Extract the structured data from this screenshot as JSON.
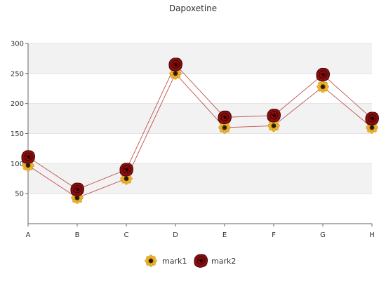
{
  "chart_data": {
    "type": "line",
    "title": "Dapoxetine",
    "categories": [
      "A",
      "B",
      "C",
      "D",
      "E",
      "F",
      "G",
      "H"
    ],
    "ylim": [
      0,
      300
    ],
    "yticks": [
      50,
      100,
      150,
      200,
      250,
      300
    ],
    "series": [
      {
        "name": "mark1",
        "values": [
          97,
          43,
          75,
          250,
          160,
          163,
          228,
          160
        ],
        "marker": "sunflower-icon"
      },
      {
        "name": "mark2",
        "values": [
          111,
          57,
          90,
          265,
          177,
          180,
          248,
          175
        ],
        "marker": "rose-icon"
      }
    ],
    "line_color": "#c0504d",
    "grid": true,
    "legend_position": "bottom-center"
  }
}
